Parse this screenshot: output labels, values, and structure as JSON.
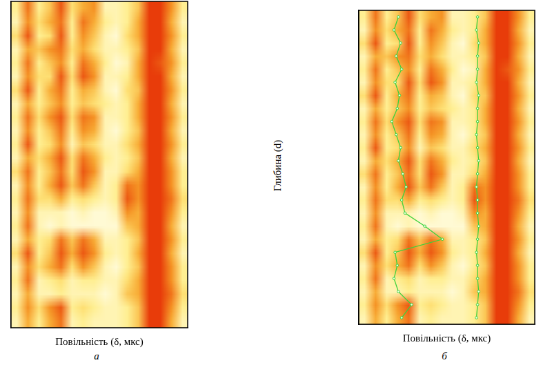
{
  "chart_data": [
    {
      "type": "heatmap",
      "panel": "а",
      "x_label": "Повільність (δ, мкс)",
      "xlim": [
        0,
        16
      ],
      "ylim": [
        24,
        0
      ],
      "tick_labels": false,
      "grid": false,
      "cells": [
        [
          0.3,
          0.8,
          0.3,
          0.5,
          0.9,
          0.4,
          0.6,
          0.7,
          0.2,
          0.2,
          0.3,
          0.5,
          1,
          1,
          0.7,
          0.3
        ],
        [
          0.2,
          0.7,
          0.4,
          0.6,
          0.8,
          0.3,
          0.8,
          0.6,
          0.3,
          0.2,
          0.3,
          0.6,
          1,
          1,
          0.6,
          0.2
        ],
        [
          0.4,
          0.9,
          0.3,
          0.4,
          0.9,
          0.3,
          0.7,
          0.5,
          0.2,
          0.1,
          0.4,
          0.6,
          1,
          1,
          0.7,
          0.3
        ],
        [
          0.2,
          0.6,
          0.5,
          0.7,
          0.8,
          0.4,
          0.6,
          0.4,
          0.2,
          0.2,
          0.3,
          0.5,
          1,
          1,
          0.6,
          0.2
        ],
        [
          0.3,
          0.8,
          0.3,
          0.5,
          0.7,
          0.3,
          0.8,
          0.6,
          0.3,
          0.1,
          0.2,
          0.6,
          1,
          0.9,
          0.7,
          0.3
        ],
        [
          0.2,
          0.7,
          0.4,
          0.4,
          0.9,
          0.4,
          0.9,
          0.7,
          0.2,
          0.2,
          0.3,
          0.6,
          1,
          1,
          0.6,
          0.2
        ],
        [
          0.4,
          0.9,
          0.3,
          0.6,
          0.8,
          0.3,
          0.6,
          0.5,
          0.2,
          0.1,
          0.4,
          0.5,
          1,
          1,
          0.7,
          0.3
        ],
        [
          0.2,
          0.6,
          0.3,
          0.5,
          0.7,
          0.3,
          0.5,
          0.4,
          0.3,
          0.2,
          0.3,
          0.6,
          1,
          1,
          0.6,
          0.2
        ],
        [
          0.3,
          0.8,
          0.4,
          0.7,
          0.9,
          0.4,
          0.8,
          0.7,
          0.2,
          0.2,
          0.3,
          0.6,
          1,
          1,
          0.7,
          0.3
        ],
        [
          0.2,
          0.7,
          0.3,
          0.5,
          0.8,
          0.3,
          0.7,
          0.6,
          0.2,
          0.1,
          0.3,
          0.5,
          1,
          1,
          0.6,
          0.2
        ],
        [
          0.3,
          0.9,
          0.3,
          0.4,
          0.7,
          0.2,
          0.5,
          0.4,
          0.2,
          0.2,
          0.4,
          0.6,
          1,
          1,
          0.7,
          0.3
        ],
        [
          0.2,
          0.6,
          0.4,
          0.6,
          0.9,
          0.4,
          0.8,
          0.6,
          0.3,
          0.2,
          0.3,
          0.5,
          1,
          1,
          0.6,
          0.2
        ],
        [
          0.4,
          0.8,
          0.3,
          0.5,
          0.8,
          0.4,
          0.9,
          0.7,
          0.2,
          0.2,
          0.4,
          0.6,
          1,
          1,
          0.7,
          0.3
        ],
        [
          0.2,
          0.7,
          0.3,
          0.6,
          0.9,
          0.5,
          0.8,
          0.5,
          0.2,
          0.3,
          0.8,
          0.7,
          1,
          1,
          0.7,
          0.3
        ],
        [
          0.3,
          0.8,
          0.4,
          0.4,
          0.6,
          0.3,
          0.4,
          0.3,
          0.2,
          0.3,
          0.9,
          0.7,
          1,
          1,
          0.8,
          0.4
        ],
        [
          0.2,
          0.7,
          0.2,
          0.2,
          0.2,
          0.1,
          0.2,
          0.1,
          0.1,
          0.2,
          0.7,
          0.6,
          1,
          1,
          0.7,
          0.3
        ],
        [
          0.3,
          0.8,
          0.2,
          0.1,
          0.2,
          0.1,
          0.1,
          0.1,
          0.1,
          0.1,
          0.5,
          0.6,
          1,
          1,
          0.6,
          0.2
        ],
        [
          0.2,
          0.6,
          0.3,
          0.4,
          0.8,
          0.5,
          0.8,
          0.6,
          0.2,
          0.2,
          0.3,
          0.5,
          1,
          1,
          0.7,
          0.3
        ],
        [
          0.4,
          0.9,
          0.3,
          0.5,
          0.9,
          0.6,
          0.9,
          0.7,
          0.3,
          0.2,
          0.3,
          0.6,
          1,
          1,
          0.6,
          0.2
        ],
        [
          0.2,
          0.7,
          0.4,
          0.6,
          0.8,
          0.4,
          0.7,
          0.5,
          0.2,
          0.1,
          0.3,
          0.5,
          1,
          1,
          0.7,
          0.3
        ],
        [
          0.3,
          0.8,
          0.2,
          0.3,
          0.4,
          0.2,
          0.3,
          0.3,
          0.2,
          0.2,
          0.4,
          0.6,
          1,
          1,
          0.7,
          0.3
        ],
        [
          0.2,
          0.6,
          0.2,
          0.2,
          0.3,
          0.2,
          0.2,
          0.2,
          0.1,
          0.2,
          0.5,
          0.6,
          1,
          1,
          0.8,
          0.4
        ],
        [
          0.3,
          0.7,
          0.4,
          0.7,
          0.9,
          0.3,
          0.4,
          0.3,
          0.2,
          0.2,
          0.3,
          0.5,
          1,
          1,
          0.7,
          0.3
        ],
        [
          0.2,
          0.6,
          0.3,
          0.6,
          0.8,
          0.2,
          0.3,
          0.2,
          0.2,
          0.2,
          0.3,
          0.5,
          1,
          1,
          0.6,
          0.2
        ]
      ]
    },
    {
      "type": "heatmap",
      "panel": "б",
      "x_label": "Повільність (δ, мкс)",
      "y_label": "Глибина (d)",
      "xlim": [
        0,
        16
      ],
      "ylim": [
        24,
        0
      ],
      "tick_labels": false,
      "grid": false,
      "cells": [
        [
          0.3,
          0.8,
          0.3,
          0.5,
          0.9,
          0.4,
          0.6,
          0.7,
          0.2,
          0.2,
          0.3,
          0.5,
          1,
          1,
          0.7,
          0.3
        ],
        [
          0.2,
          0.7,
          0.4,
          0.6,
          0.8,
          0.3,
          0.8,
          0.6,
          0.3,
          0.2,
          0.3,
          0.6,
          1,
          1,
          0.6,
          0.2
        ],
        [
          0.4,
          0.9,
          0.3,
          0.4,
          0.9,
          0.3,
          0.7,
          0.5,
          0.2,
          0.1,
          0.4,
          0.6,
          1,
          1,
          0.7,
          0.3
        ],
        [
          0.2,
          0.6,
          0.5,
          0.7,
          0.8,
          0.4,
          0.6,
          0.4,
          0.2,
          0.2,
          0.3,
          0.5,
          1,
          1,
          0.6,
          0.2
        ],
        [
          0.3,
          0.8,
          0.3,
          0.5,
          0.7,
          0.3,
          0.8,
          0.6,
          0.3,
          0.1,
          0.2,
          0.6,
          1,
          0.9,
          0.7,
          0.3
        ],
        [
          0.2,
          0.7,
          0.4,
          0.4,
          0.9,
          0.4,
          0.9,
          0.7,
          0.2,
          0.2,
          0.3,
          0.6,
          1,
          1,
          0.6,
          0.2
        ],
        [
          0.4,
          0.9,
          0.3,
          0.6,
          0.8,
          0.3,
          0.6,
          0.5,
          0.2,
          0.1,
          0.4,
          0.5,
          1,
          1,
          0.7,
          0.3
        ],
        [
          0.2,
          0.6,
          0.3,
          0.5,
          0.7,
          0.3,
          0.5,
          0.4,
          0.3,
          0.2,
          0.3,
          0.6,
          1,
          1,
          0.6,
          0.2
        ],
        [
          0.3,
          0.8,
          0.4,
          0.7,
          0.9,
          0.4,
          0.8,
          0.7,
          0.2,
          0.2,
          0.3,
          0.6,
          1,
          1,
          0.7,
          0.3
        ],
        [
          0.2,
          0.7,
          0.3,
          0.5,
          0.8,
          0.3,
          0.7,
          0.6,
          0.2,
          0.1,
          0.3,
          0.5,
          1,
          1,
          0.6,
          0.2
        ],
        [
          0.3,
          0.9,
          0.3,
          0.4,
          0.7,
          0.2,
          0.5,
          0.4,
          0.2,
          0.2,
          0.4,
          0.6,
          1,
          1,
          0.7,
          0.3
        ],
        [
          0.2,
          0.6,
          0.4,
          0.6,
          0.9,
          0.4,
          0.8,
          0.6,
          0.3,
          0.2,
          0.3,
          0.5,
          1,
          1,
          0.6,
          0.2
        ],
        [
          0.4,
          0.8,
          0.3,
          0.5,
          0.8,
          0.4,
          0.9,
          0.7,
          0.2,
          0.2,
          0.4,
          0.6,
          1,
          1,
          0.7,
          0.3
        ],
        [
          0.2,
          0.7,
          0.3,
          0.6,
          0.9,
          0.5,
          0.8,
          0.5,
          0.2,
          0.3,
          0.8,
          0.7,
          1,
          1,
          0.7,
          0.3
        ],
        [
          0.3,
          0.8,
          0.4,
          0.4,
          0.6,
          0.3,
          0.4,
          0.3,
          0.2,
          0.3,
          0.9,
          0.7,
          1,
          1,
          0.8,
          0.4
        ],
        [
          0.2,
          0.7,
          0.2,
          0.2,
          0.2,
          0.1,
          0.2,
          0.1,
          0.1,
          0.2,
          0.7,
          0.6,
          1,
          1,
          0.7,
          0.3
        ],
        [
          0.3,
          0.8,
          0.2,
          0.1,
          0.2,
          0.1,
          0.1,
          0.1,
          0.1,
          0.1,
          0.5,
          0.6,
          1,
          1,
          0.6,
          0.2
        ],
        [
          0.2,
          0.6,
          0.3,
          0.4,
          0.8,
          0.5,
          0.8,
          0.6,
          0.2,
          0.2,
          0.3,
          0.5,
          1,
          1,
          0.7,
          0.3
        ],
        [
          0.4,
          0.9,
          0.3,
          0.5,
          0.9,
          0.6,
          0.9,
          0.7,
          0.3,
          0.2,
          0.3,
          0.6,
          1,
          1,
          0.6,
          0.2
        ],
        [
          0.2,
          0.7,
          0.4,
          0.6,
          0.8,
          0.4,
          0.7,
          0.5,
          0.2,
          0.1,
          0.3,
          0.5,
          1,
          1,
          0.7,
          0.3
        ],
        [
          0.3,
          0.8,
          0.2,
          0.3,
          0.4,
          0.2,
          0.3,
          0.3,
          0.2,
          0.2,
          0.4,
          0.6,
          1,
          1,
          0.7,
          0.3
        ],
        [
          0.2,
          0.6,
          0.2,
          0.2,
          0.3,
          0.2,
          0.2,
          0.2,
          0.1,
          0.2,
          0.5,
          0.6,
          1,
          1,
          0.8,
          0.4
        ],
        [
          0.3,
          0.7,
          0.4,
          0.7,
          0.9,
          0.3,
          0.4,
          0.3,
          0.2,
          0.2,
          0.3,
          0.5,
          1,
          1,
          0.7,
          0.3
        ],
        [
          0.2,
          0.6,
          0.3,
          0.6,
          0.8,
          0.2,
          0.3,
          0.2,
          0.2,
          0.2,
          0.3,
          0.5,
          1,
          1,
          0.6,
          0.2
        ]
      ],
      "series": [
        {
          "type": "line",
          "color": "#3cd23c",
          "marker": "circle",
          "line_style": "solid",
          "x": [
            3.6,
            3.2,
            3.8,
            3.4,
            3.9,
            3.3,
            3.7,
            3.5,
            3.0,
            3.4,
            3.8,
            3.6,
            4.0,
            4.3,
            3.9,
            4.2,
            6.0,
            7.6,
            3.3,
            3.5,
            3.2,
            3.6,
            4.8,
            3.9
          ],
          "y": [
            0.5,
            1.5,
            2.5,
            3.5,
            4.5,
            5.5,
            6.5,
            7.5,
            8.5,
            9.5,
            10.5,
            11.5,
            12.5,
            13.5,
            14.5,
            15.5,
            16.5,
            17.5,
            18.5,
            19.5,
            20.5,
            21.5,
            22.5,
            23.5
          ]
        },
        {
          "type": "line",
          "color": "#3cd23c",
          "marker": "circle",
          "line_style": "solid",
          "x": [
            10.8,
            10.7,
            10.9,
            10.8,
            10.8,
            10.7,
            10.9,
            10.8,
            10.8,
            10.7,
            10.8,
            10.9,
            10.8,
            10.7,
            10.8,
            10.8,
            10.9,
            10.8,
            10.7,
            10.8,
            10.8,
            10.9,
            10.8,
            10.7
          ],
          "y": [
            0.5,
            1.5,
            2.5,
            3.5,
            4.5,
            5.5,
            6.5,
            7.5,
            8.5,
            9.5,
            10.5,
            11.5,
            12.5,
            13.5,
            14.5,
            15.5,
            16.5,
            17.5,
            18.5,
            19.5,
            20.5,
            21.5,
            22.5,
            23.5
          ]
        }
      ]
    }
  ]
}
